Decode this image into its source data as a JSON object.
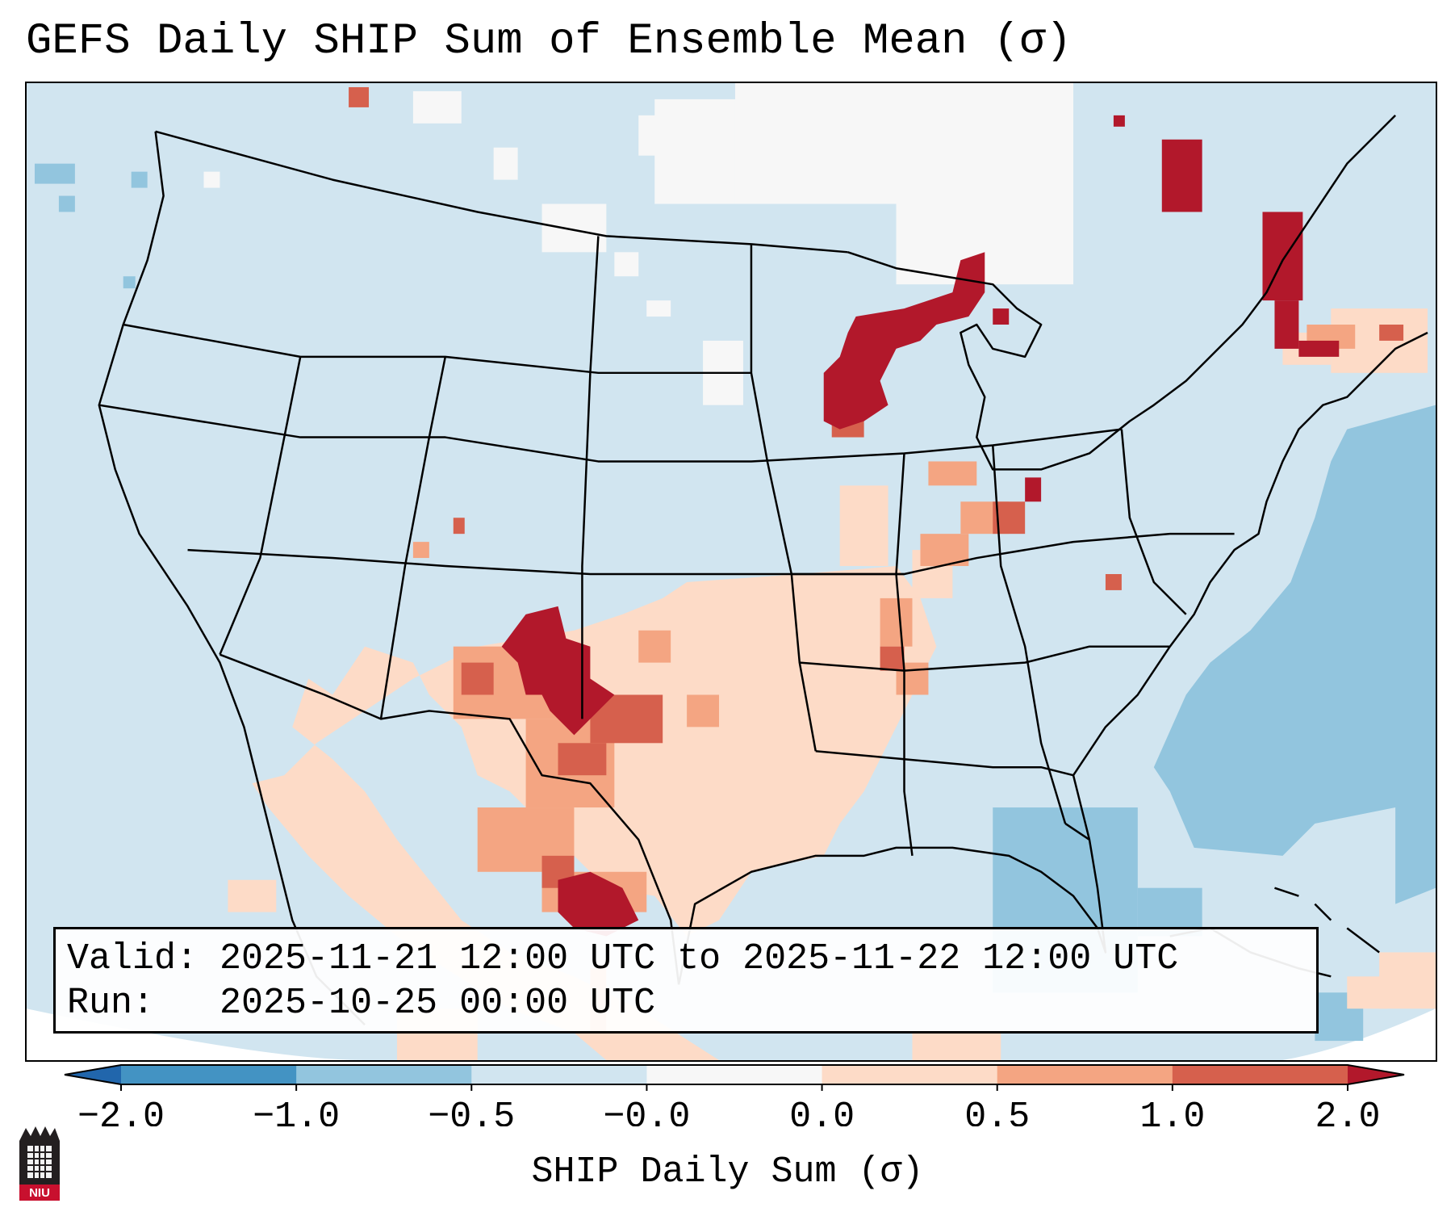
{
  "title": "GEFS Daily SHIP Sum of Ensemble Mean (σ)",
  "info_box": {
    "valid_prefix": "Valid:",
    "valid_value": "2025-11-21 12:00 UTC to 2025-11-22 12:00 UTC",
    "run_prefix": "Run:",
    "run_value": "2025-10-25 00:00 UTC"
  },
  "colorbar": {
    "label": "SHIP Daily Sum (σ)",
    "tick_labels": [
      "−2.0",
      "−1.0",
      "−0.5",
      "−0.0",
      "0.0",
      "0.5",
      "1.0",
      "2.0"
    ],
    "colors": [
      "#2166ac",
      "#4393c3",
      "#92c5de",
      "#d1e5f0",
      "#f7f7f7",
      "#fddbc7",
      "#f4a582",
      "#d6604d",
      "#b2182b"
    ]
  },
  "logo": {
    "text": "NIU"
  },
  "map_regions": [
    {
      "name": "Texas and Oklahoma panhandle positive anomaly",
      "value_class": "above 1.0"
    },
    {
      "name": "Upper Great Lakes positive anomaly",
      "value_class": "above 1.0"
    },
    {
      "name": "Northern New England positive anomaly",
      "value_class": "above 1.0"
    },
    {
      "name": "Northeast Mexico positive anomaly",
      "value_class": "above 1.0"
    },
    {
      "name": "Western Atlantic negative anomaly",
      "value_class": "-1.0 to -0.5"
    }
  ]
}
